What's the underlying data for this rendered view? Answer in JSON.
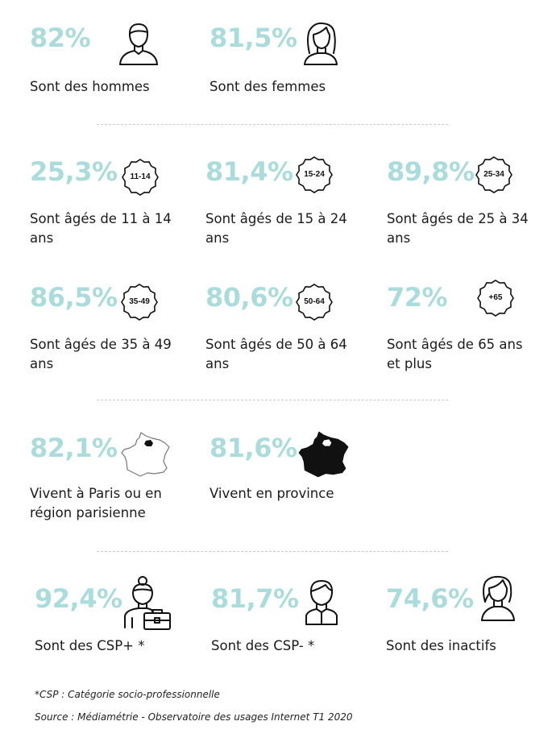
{
  "colors": {
    "accent": "#abdcdc",
    "text": "#1b1b1b",
    "divider": "#c9c9c9"
  },
  "gender": [
    {
      "pct": "82%",
      "label": "Sont des hommes",
      "icon": "man-icon"
    },
    {
      "pct": "81,5%",
      "label": "Sont des femmes",
      "icon": "woman-icon"
    }
  ],
  "ages": [
    {
      "pct": "25,3%",
      "badge": "11-14",
      "label": "Sont âgés de 11 à 14 ans"
    },
    {
      "pct": "81,4%",
      "badge": "15-24",
      "label": "Sont âgés de 15 à 24 ans"
    },
    {
      "pct": "89,8%",
      "badge": "25-34",
      "label": "Sont âgés de 25 à 34 ans"
    },
    {
      "pct": "86,5%",
      "badge": "35-49",
      "label": "Sont âgés de 35 à 49 ans"
    },
    {
      "pct": "80,6%",
      "badge": "50-64",
      "label": "Sont âgés de 50 à 64 ans"
    },
    {
      "pct": "72%",
      "badge": "+65",
      "label": "Sont âgés de 65 ans et plus"
    }
  ],
  "region": [
    {
      "pct": "82,1%",
      "label": "Vivent à Paris ou en région parisienne",
      "icon": "france-map-paris-icon"
    },
    {
      "pct": "81,6%",
      "label": "Vivent en province",
      "icon": "france-map-province-icon"
    }
  ],
  "csp": [
    {
      "pct": "92,4%",
      "label": "Sont des CSP+ *",
      "icon": "businesswoman-icon"
    },
    {
      "pct": "81,7%",
      "label": "Sont des CSP- *",
      "icon": "worker-icon"
    },
    {
      "pct": "74,6%",
      "label": "Sont des inactifs",
      "icon": "person-icon"
    }
  ],
  "footnote": "*CSP : Catégorie socio-professionnelle",
  "source": "Source : Médiamétrie - Observatoire des usages Internet T1 2020"
}
